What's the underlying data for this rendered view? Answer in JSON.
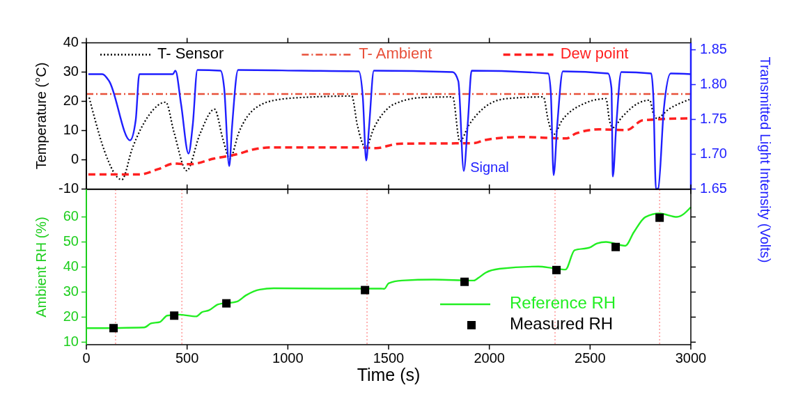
{
  "chart_data": [
    {
      "type": "line",
      "xlim": [
        0,
        3000
      ],
      "xticks": [
        0,
        500,
        1000,
        1500,
        2000,
        2500,
        3000
      ],
      "ylim": [
        -10,
        40
      ],
      "yticks": [
        -10,
        0,
        10,
        20,
        30,
        40
      ],
      "y2lim": [
        1.65,
        1.86
      ],
      "y2ticks": [
        1.65,
        {
          "value": 1.7,
          "label": "1.70"
        },
        1.75,
        {
          "value": 1.8,
          "label": "1.80"
        },
        1.85
      ],
      "ylabel": "Temperature (°C)",
      "y2label": "Transmitted Light Intensity (Volts)",
      "tick_labels": "y",
      "grid": false,
      "legend": "top",
      "annotations": [
        "Signal"
      ],
      "series": [
        {
          "name": "T- Sensor",
          "color": "#000000",
          "line_style": "dotted",
          "x": [
            14,
            44,
            90,
            176,
            228,
            308,
            394,
            435,
            498,
            563,
            636,
            678,
            712,
            757,
            840,
            954,
            1127,
            1317,
            1345,
            1386,
            1428,
            1507,
            1552,
            1669,
            1818,
            1853,
            1898,
            1981,
            2084,
            2268,
            2292,
            2319,
            2361,
            2440,
            2579,
            2596,
            2613,
            2658,
            2741,
            2796,
            2814,
            2831,
            2890,
            2993
          ],
          "values": [
            21.3,
            13.5,
            3.0,
            -6.8,
            3.9,
            15.0,
            19.7,
            9.4,
            -3.7,
            8.7,
            17.3,
            7.0,
            0.4,
            9.4,
            17.7,
            20.6,
            21.5,
            21.8,
            11.8,
            4.2,
            11.0,
            18.2,
            19.7,
            21.3,
            21.5,
            6.3,
            11.8,
            18.2,
            20.9,
            21.5,
            13.5,
            8.7,
            13.5,
            18.2,
            20.9,
            13.5,
            11.0,
            14.6,
            19.4,
            20.4,
            15.8,
            14.2,
            17.3,
            20.6
          ]
        },
        {
          "name": "T- Ambient",
          "color": "#e8503a",
          "line_style": "dashdot",
          "x": [
            0,
            3000
          ],
          "values": [
            22.5,
            22.5
          ]
        },
        {
          "name": "Dew point",
          "color": "#ff2020",
          "line_style": "dashed",
          "x": [
            10,
            263,
            356,
            435,
            515,
            633,
            747,
            840,
            909,
            1358,
            1438,
            1552,
            1922,
            1981,
            2154,
            2382,
            2430,
            2544,
            2682,
            2762,
            2993
          ],
          "values": [
            -5.0,
            -5.0,
            -3.2,
            -1.3,
            -1.5,
            0.4,
            1.9,
            3.7,
            4.2,
            4.2,
            4.0,
            5.5,
            5.7,
            6.8,
            7.8,
            7.3,
            9.0,
            10.4,
            10.2,
            13.5,
            14.2
          ]
        },
        {
          "color": "#1f1fff",
          "axis": "y2",
          "line_style": "solid",
          "x": [
            10,
            79,
            113,
            217,
            245,
            263,
            429,
            442,
            470,
            507,
            528,
            551,
            666,
            684,
            709,
            723,
            753,
            1069,
            1352,
            1372,
            1389,
            1403,
            1427,
            1818,
            1846,
            1873,
            1894,
            1912,
            2292,
            2305,
            2319,
            2337,
            2365,
            2589,
            2606,
            2613,
            2630,
            2655,
            2803,
            2814,
            2827,
            2838,
            2866,
            2900,
            3000
          ],
          "values": [
            1.815,
            1.815,
            1.805,
            1.72,
            1.749,
            1.815,
            1.815,
            1.82,
            1.772,
            1.701,
            1.742,
            1.821,
            1.82,
            1.795,
            1.683,
            1.739,
            1.821,
            1.82,
            1.819,
            1.782,
            1.691,
            1.739,
            1.82,
            1.818,
            1.805,
            1.676,
            1.749,
            1.82,
            1.816,
            1.789,
            1.67,
            1.742,
            1.819,
            1.816,
            1.795,
            1.668,
            1.742,
            1.818,
            1.816,
            1.782,
            1.65,
            1.651,
            1.765,
            1.816,
            1.815
          ]
        }
      ]
    },
    {
      "type": "line",
      "xlim": [
        0,
        3000
      ],
      "xticks": [
        0,
        500,
        1000,
        1500,
        2000,
        2500,
        3000
      ],
      "ylim": [
        9,
        71
      ],
      "yticks": [
        10,
        20,
        30,
        40,
        50,
        60
      ],
      "xlabel": "Time (s)",
      "ylabel": "Ambient RH (%)",
      "grid": false,
      "legend": "bottom right",
      "ref_lines": [
        {
          "axis": "x",
          "value": 145,
          "color": "#ff8080",
          "line_style": "dotted"
        },
        {
          "axis": "x",
          "value": 474,
          "color": "#ff8080",
          "line_style": "dotted"
        },
        {
          "axis": "x",
          "value": 1393,
          "color": "#ff8080",
          "line_style": "dotted"
        },
        {
          "axis": "x",
          "value": 2326,
          "color": "#ff8080",
          "line_style": "dotted"
        },
        {
          "axis": "x",
          "value": 2845,
          "color": "#ff8080",
          "line_style": "dotted"
        }
      ],
      "series": [
        {
          "name": "Reference RH",
          "color": "#22ee22",
          "line_style": "solid",
          "x": [
            0,
            287,
            321,
            366,
            401,
            458,
            545,
            574,
            608,
            654,
            747,
            792,
            861,
            930,
            1200,
            1462,
            1479,
            1500,
            1566,
            1725,
            1922,
            1946,
            1981,
            2050,
            2243,
            2313,
            2378,
            2423,
            2499,
            2534,
            2579,
            2675,
            2717,
            2775,
            2845,
            2931,
            3000
          ],
          "values": [
            15.6,
            15.9,
            17.5,
            18.1,
            20.6,
            21.0,
            20.3,
            22.0,
            22.7,
            25.1,
            26.2,
            28.7,
            31.0,
            31.5,
            31.4,
            31.4,
            31.3,
            33.5,
            34.6,
            35.0,
            34.6,
            35.7,
            37.7,
            39.3,
            40.2,
            39.6,
            39.0,
            46.7,
            47.8,
            49.4,
            50.0,
            48.5,
            53.9,
            60.0,
            61.4,
            60.0,
            63.9
          ]
        },
        {
          "name": "Measured RH",
          "type": "scatter",
          "marker": "square",
          "color": "#000000",
          "x": [
            135,
            436,
            695,
            1383,
            1877,
            2333,
            2627,
            2845
          ],
          "values": [
            15.6,
            20.6,
            25.5,
            30.8,
            34.1,
            38.8,
            48.0,
            59.7
          ]
        }
      ]
    }
  ]
}
